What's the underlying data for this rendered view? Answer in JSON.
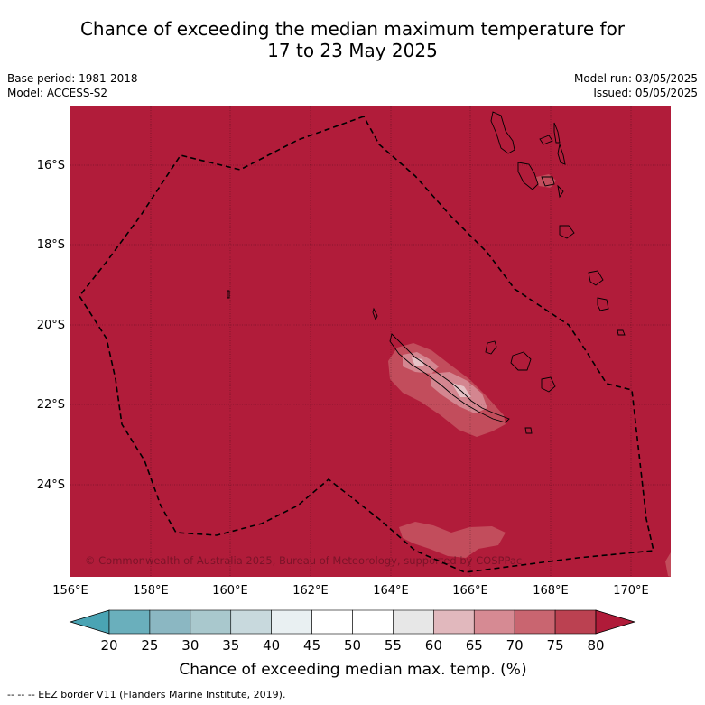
{
  "title_line1": "Chance of exceeding the median maximum temperature for",
  "title_line2": "17 to 23 May 2025",
  "meta_left": {
    "base_period": "Base period: 1981-2018",
    "model": "Model: ACCESS-S2"
  },
  "meta_right": {
    "model_run": "Model run: 03/05/2025",
    "issued": "Issued: 05/05/2025"
  },
  "latitude_labels": [
    "16°S",
    "18°S",
    "20°S",
    "22°S",
    "24°S"
  ],
  "longitude_labels": [
    "156°E",
    "158°E",
    "160°E",
    "162°E",
    "164°E",
    "166°E",
    "168°E",
    "170°E"
  ],
  "copyright": "© Commonwealth of Australia 2025, Bureau of Meteorology, supported by COSPPac",
  "colorbar": {
    "ticks": [
      "20",
      "25",
      "30",
      "35",
      "40",
      "45",
      "50",
      "55",
      "60",
      "65",
      "70",
      "75",
      "80"
    ],
    "colors": [
      "#6aafbc",
      "#8bb7c2",
      "#a9c8cd",
      "#c8d9dd",
      "#e9f0f2",
      "#ffffff",
      "#ffffff",
      "#e7e7e7",
      "#e1b8bd",
      "#d68a93",
      "#c96570",
      "#bb4151"
    ],
    "low_color": "#4aa4b4",
    "high_color": "#b01b39",
    "title": "Chance of exceeding median max. temp. (%)"
  },
  "map_colors": {
    "background": "#b11c3a",
    "band_70": "#c24d5c",
    "band_60": "#d48690",
    "band_55": "#e6c2c6"
  },
  "footer": "--  --  -- EEZ border V11 (Flanders Marine Institute, 2019)."
}
